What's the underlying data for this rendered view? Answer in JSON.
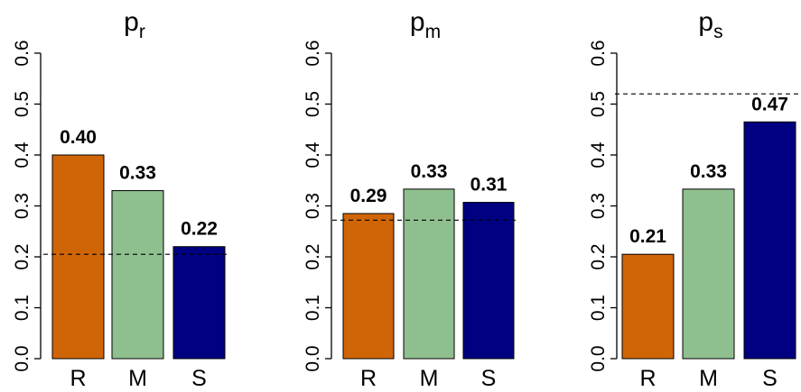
{
  "chart_data": [
    {
      "type": "bar",
      "title": "p",
      "title_subscript": "r",
      "categories": [
        "R",
        "M",
        "S"
      ],
      "values": [
        0.4,
        0.33,
        0.22
      ],
      "labels": [
        "0.40",
        "0.33",
        "0.22"
      ],
      "colors": [
        "#d06508",
        "#8fbf8f",
        "#000080"
      ],
      "reference_line": 0.205,
      "ylim": [
        0,
        0.6
      ],
      "yticks": [
        "0.0",
        "0.1",
        "0.2",
        "0.3",
        "0.4",
        "0.5",
        "0.6"
      ],
      "xlabel": "",
      "ylabel": "",
      "grid": false
    },
    {
      "type": "bar",
      "title": "p",
      "title_subscript": "m",
      "categories": [
        "R",
        "M",
        "S"
      ],
      "values": [
        0.285,
        0.333,
        0.307
      ],
      "labels": [
        "0.29",
        "0.33",
        "0.31"
      ],
      "colors": [
        "#d06508",
        "#8fbf8f",
        "#000080"
      ],
      "reference_line": 0.272,
      "ylim": [
        0,
        0.6
      ],
      "yticks": [
        "0.0",
        "0.1",
        "0.2",
        "0.3",
        "0.4",
        "0.5",
        "0.6"
      ],
      "xlabel": "",
      "ylabel": "",
      "grid": false
    },
    {
      "type": "bar",
      "title": "p",
      "title_subscript": "s",
      "categories": [
        "R",
        "M",
        "S"
      ],
      "values": [
        0.205,
        0.333,
        0.465
      ],
      "labels": [
        "0.21",
        "0.33",
        "0.47"
      ],
      "colors": [
        "#d06508",
        "#8fbf8f",
        "#000080"
      ],
      "reference_line": 0.52,
      "ylim": [
        0,
        0.6
      ],
      "yticks": [
        "0.0",
        "0.1",
        "0.2",
        "0.3",
        "0.4",
        "0.5",
        "0.6"
      ],
      "xlabel": "",
      "ylabel": "",
      "grid": false
    }
  ]
}
